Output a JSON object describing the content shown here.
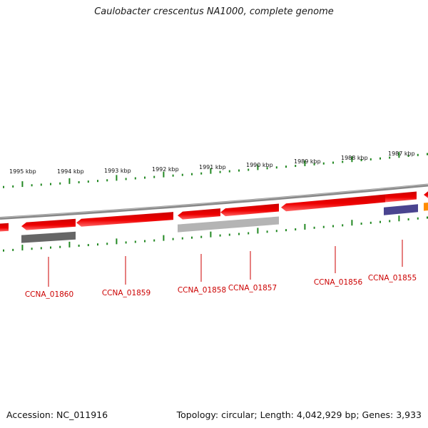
{
  "title": "Caulobacter crescentus NA1000, complete genome",
  "footer": {
    "accession": "Accession: NC_011916",
    "summary": "Topology: circular; Length: 4,042,929 bp; Genes: 3,933"
  },
  "scale_labels": [
    "1995 kbp",
    "1994 kbp",
    "1993 kbp",
    "1992 kbp",
    "1991 kbp",
    "1990 kbp",
    "1989 kbp",
    "1988 kbp",
    "1987 kbp"
  ],
  "genes": [
    {
      "label": "CCNA_01860"
    },
    {
      "label": "CCNA_01859"
    },
    {
      "label": "CCNA_01858"
    },
    {
      "label": "CCNA_01857"
    },
    {
      "label": "CCNA_01856"
    },
    {
      "label": "CCNA_01855"
    }
  ],
  "colors": {
    "cds": "#ee0000",
    "cds_light": "#ff6666",
    "backbone": "#888888",
    "tick": "#228822",
    "label": "#cc0000",
    "dark_gray": "#666666",
    "light_gray": "#b4b4b4",
    "purple": "#4a4490",
    "orange": "#ff8c00"
  }
}
